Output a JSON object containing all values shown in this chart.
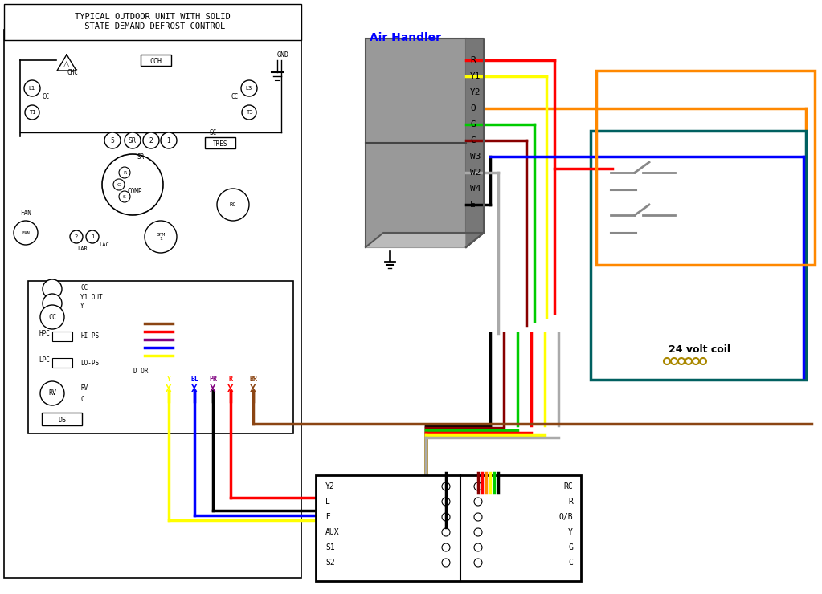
{
  "bg_color": "#ffffff",
  "outdoor_title": "TYPICAL OUTDOOR UNIT WITH SOLID\n STATE DEMAND DEFROST CONTROL",
  "air_handler_label": "Air Handler",
  "relay_box_color": "#006060",
  "orange_box_color": "#ff8800",
  "wire_colors": {
    "R": "#ff0000",
    "Y1": "#ffff00",
    "Y2": "#ffff00",
    "O": "#ff8800",
    "G": "#00cc00",
    "C": "#880000",
    "W3": "#808080",
    "W2": "#aaaaaa",
    "W4": "#808080",
    "E": "#000000",
    "blue": "#0000ff",
    "black": "#000000",
    "brown": "#8B4513",
    "purple": "#800080",
    "yellow": "#ffff00"
  },
  "terminal_labels_ah": [
    "R",
    "Y1",
    "Y2",
    "O",
    "G",
    "C",
    "W3",
    "W2",
    "W4",
    "E"
  ],
  "thermostat_left": [
    "Y2",
    "L",
    "E",
    "AUX",
    "S1",
    "S2"
  ],
  "thermostat_right": [
    "RC",
    "R",
    "O/B",
    "Y",
    "G",
    "C"
  ]
}
